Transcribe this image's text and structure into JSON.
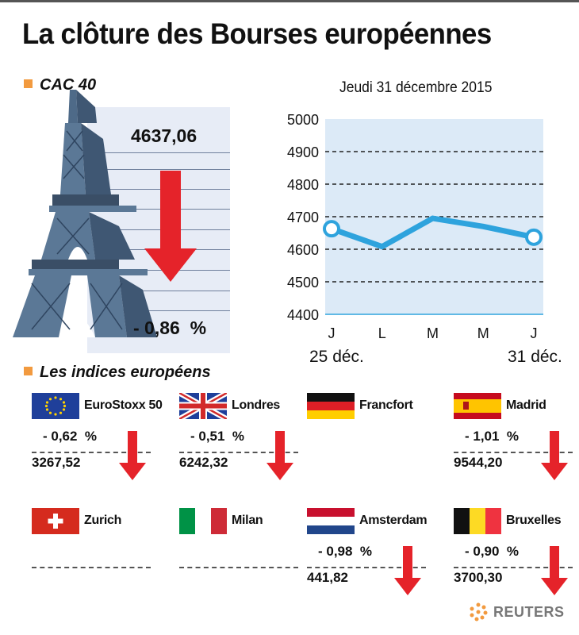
{
  "title": "La clôture des Bourses européennes",
  "cac": {
    "header": "CAC 40",
    "value": "4637,06",
    "change": "- 0,86  %"
  },
  "chart_data": {
    "type": "line",
    "title": "Jeudi 31 décembre 2015",
    "categories": [
      "J",
      "L",
      "M",
      "M",
      "J"
    ],
    "values": [
      4663,
      4608,
      4695,
      4670,
      4637
    ],
    "yticks": [
      4400,
      4500,
      4600,
      4700,
      4800,
      4900,
      5000
    ],
    "ylim": [
      4400,
      5000
    ],
    "date_start": "25 déc.",
    "date_end": "31 déc.",
    "grid": "dashed",
    "color": "#2ea3dd"
  },
  "indices": {
    "header": "Les indices européens",
    "items": [
      {
        "name": "EuroStoxx 50",
        "flag": "eu-flag-icon",
        "change": "- 0,62  %",
        "value": "3267,52",
        "trend": "down"
      },
      {
        "name": "Londres",
        "flag": "uk-flag-icon",
        "change": "- 0,51  %",
        "value": "6242,32",
        "trend": "down"
      },
      {
        "name": "Francfort",
        "flag": "germany-flag-icon",
        "change": "",
        "value": "",
        "trend": "none"
      },
      {
        "name": "Madrid",
        "flag": "spain-flag-icon",
        "change": "- 1,01  %",
        "value": "9544,20",
        "trend": "down"
      },
      {
        "name": "Zurich",
        "flag": "switzerland-flag-icon",
        "change": "",
        "value": "",
        "trend": "none"
      },
      {
        "name": "Milan",
        "flag": "italy-flag-icon",
        "change": "",
        "value": "",
        "trend": "none"
      },
      {
        "name": "Amsterdam",
        "flag": "netherlands-flag-icon",
        "change": "- 0,98  %",
        "value": "441,82",
        "trend": "down"
      },
      {
        "name": "Bruxelles",
        "flag": "belgium-flag-icon",
        "change": "- 0,90  %",
        "value": "3700,30",
        "trend": "down"
      }
    ]
  },
  "colors": {
    "down": "#e5232a",
    "accent": "#f29a3f",
    "line": "#2ea3dd"
  },
  "source": "REUTERS"
}
